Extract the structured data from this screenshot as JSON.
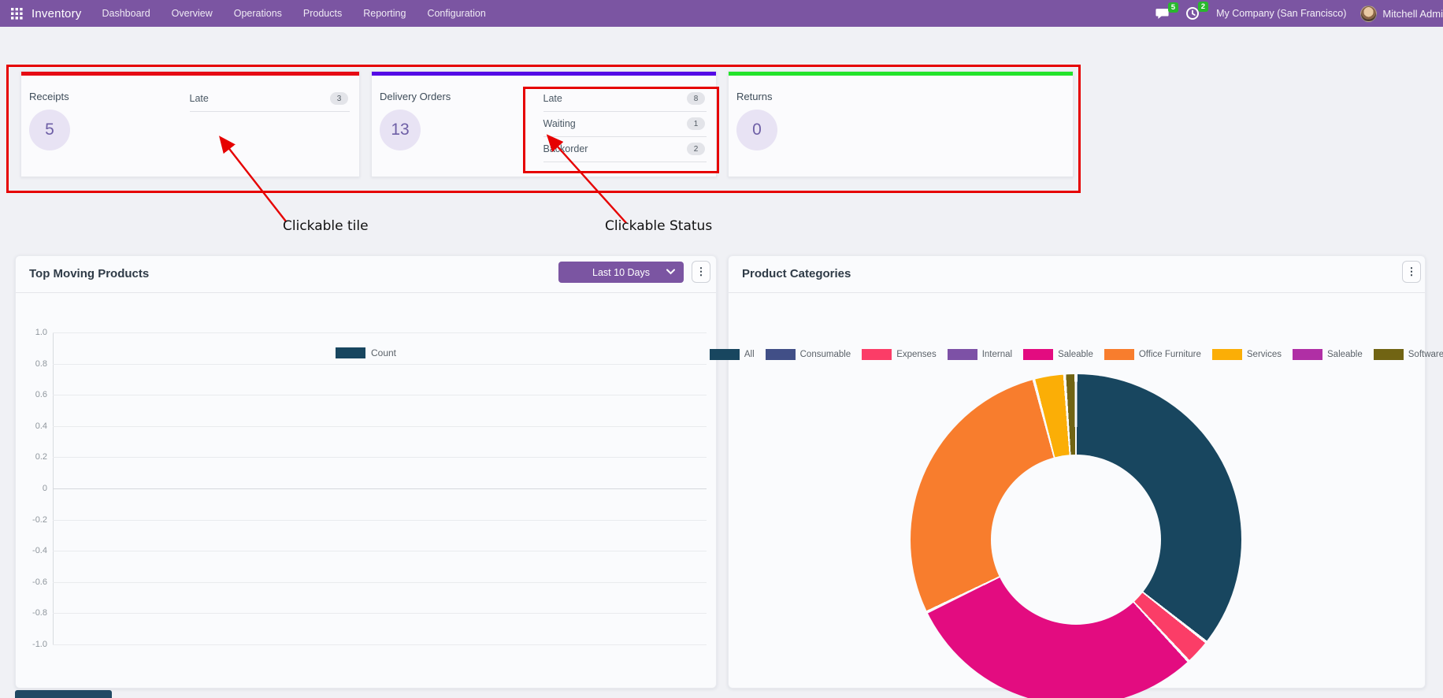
{
  "nav": {
    "app_name": "Inventory",
    "items": [
      "Dashboard",
      "Overview",
      "Operations",
      "Products",
      "Reporting",
      "Configuration"
    ],
    "messages_count": "5",
    "activities_count": "2",
    "company": "My Company (San Francisco)",
    "user": "Mitchell Admi",
    "bar_color": "#7b55a2",
    "badge_color": "#28b82d"
  },
  "tiles": [
    {
      "title": "Receipts",
      "count": "5",
      "accent_color": "#e60b14",
      "statuses": [
        {
          "label": "Late",
          "badge": "3"
        }
      ]
    },
    {
      "title": "Delivery Orders",
      "count": "13",
      "accent_color": "#5409e6",
      "statuses": [
        {
          "label": "Late",
          "badge": "8"
        },
        {
          "label": "Waiting",
          "badge": "1"
        },
        {
          "label": "Backorder",
          "badge": "2"
        }
      ]
    },
    {
      "title": "Returns",
      "count": "0",
      "accent_color": "#23e32b",
      "statuses": []
    }
  ],
  "annotations": {
    "tile_label": "Clickable tile",
    "status_label": "Clickable Status",
    "color": "#e60000"
  },
  "panels": {
    "products": {
      "title": "Top Moving Products",
      "filter_label": "Last 10 Days",
      "menu_icon": "kebab-menu-icon"
    },
    "categories": {
      "title": "Product Categories",
      "menu_icon": "kebab-menu-icon"
    }
  },
  "chart_data": [
    {
      "type": "line",
      "title": "Top Moving Products",
      "xlabel": "",
      "ylabel": "",
      "ylim": [
        -1.0,
        1.0
      ],
      "yticks": [
        "1.0",
        "0.8",
        "0.6",
        "0.4",
        "0.2",
        "0",
        "-0.2",
        "-0.4",
        "-0.6",
        "-0.8",
        "-1.0"
      ],
      "grid": true,
      "legend_position": "top",
      "series": [
        {
          "name": "Count",
          "color": "#18465f",
          "values": []
        }
      ],
      "note": "chart area is empty - no data points plotted"
    },
    {
      "type": "pie",
      "donut": true,
      "title": "Product Categories",
      "legend_position": "top",
      "legend": [
        {
          "label": "All",
          "color": "#18465f"
        },
        {
          "label": "Consumable",
          "color": "#414f87"
        },
        {
          "label": "Expenses",
          "color": "#fb3d67"
        },
        {
          "label": "Internal",
          "color": "#7d51a6"
        },
        {
          "label": "Saleable",
          "color": "#e30c80"
        },
        {
          "label": "Office Furniture",
          "color": "#f87d2d"
        },
        {
          "label": "Services",
          "color": "#fbae06"
        },
        {
          "label": "Saleable",
          "color": "#b02fa5"
        },
        {
          "label": "Software",
          "color": "#716413"
        }
      ],
      "slices": [
        {
          "label": "All",
          "pct": 35.6,
          "color": "#18465f"
        },
        {
          "label": "Expenses",
          "pct": 2.5,
          "color": "#fb3d67"
        },
        {
          "label": "Saleable",
          "pct": 29.7,
          "color": "#e30c80"
        },
        {
          "label": "Office Furniture",
          "pct": 28.1,
          "color": "#f87d2d"
        },
        {
          "label": "Services",
          "pct": 3.0,
          "color": "#fbae06"
        },
        {
          "label": "Software",
          "pct": 1.1,
          "color": "#716413"
        }
      ]
    }
  ]
}
